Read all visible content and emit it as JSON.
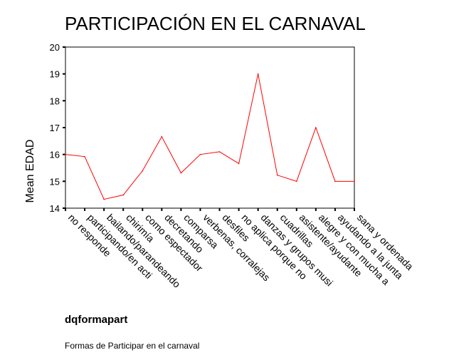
{
  "chart_data": {
    "type": "line",
    "title": "PARTICIPACIÓN EN EL CARNAVAL",
    "xlabel": "dqformapart",
    "ylabel": "Mean EDAD",
    "caption": "Formas de Participar en el carnaval",
    "ylim": [
      14,
      20
    ],
    "yticks": [
      "14",
      "15",
      "16",
      "17",
      "18",
      "19",
      "20"
    ],
    "grid": false,
    "line_color": "#ff0000",
    "categories": [
      "no responde",
      "participando/en acti",
      "bailando/parandeando",
      "chirimía",
      "como espectador",
      "decretando",
      "comparsa",
      "verbenas, corralejas",
      "desfiles",
      "no aplica porque no",
      "danzas y grupos musi",
      "cuadrillas",
      "asistente/ayudante",
      "alegre y con mucha a",
      "ayudando a la junta",
      "sana y ordenada"
    ],
    "values": [
      16.0,
      15.92,
      14.33,
      14.49,
      15.39,
      16.66,
      15.31,
      16.0,
      16.1,
      15.66,
      19.0,
      15.23,
      15.0,
      17.0,
      15.0,
      15.0
    ]
  }
}
